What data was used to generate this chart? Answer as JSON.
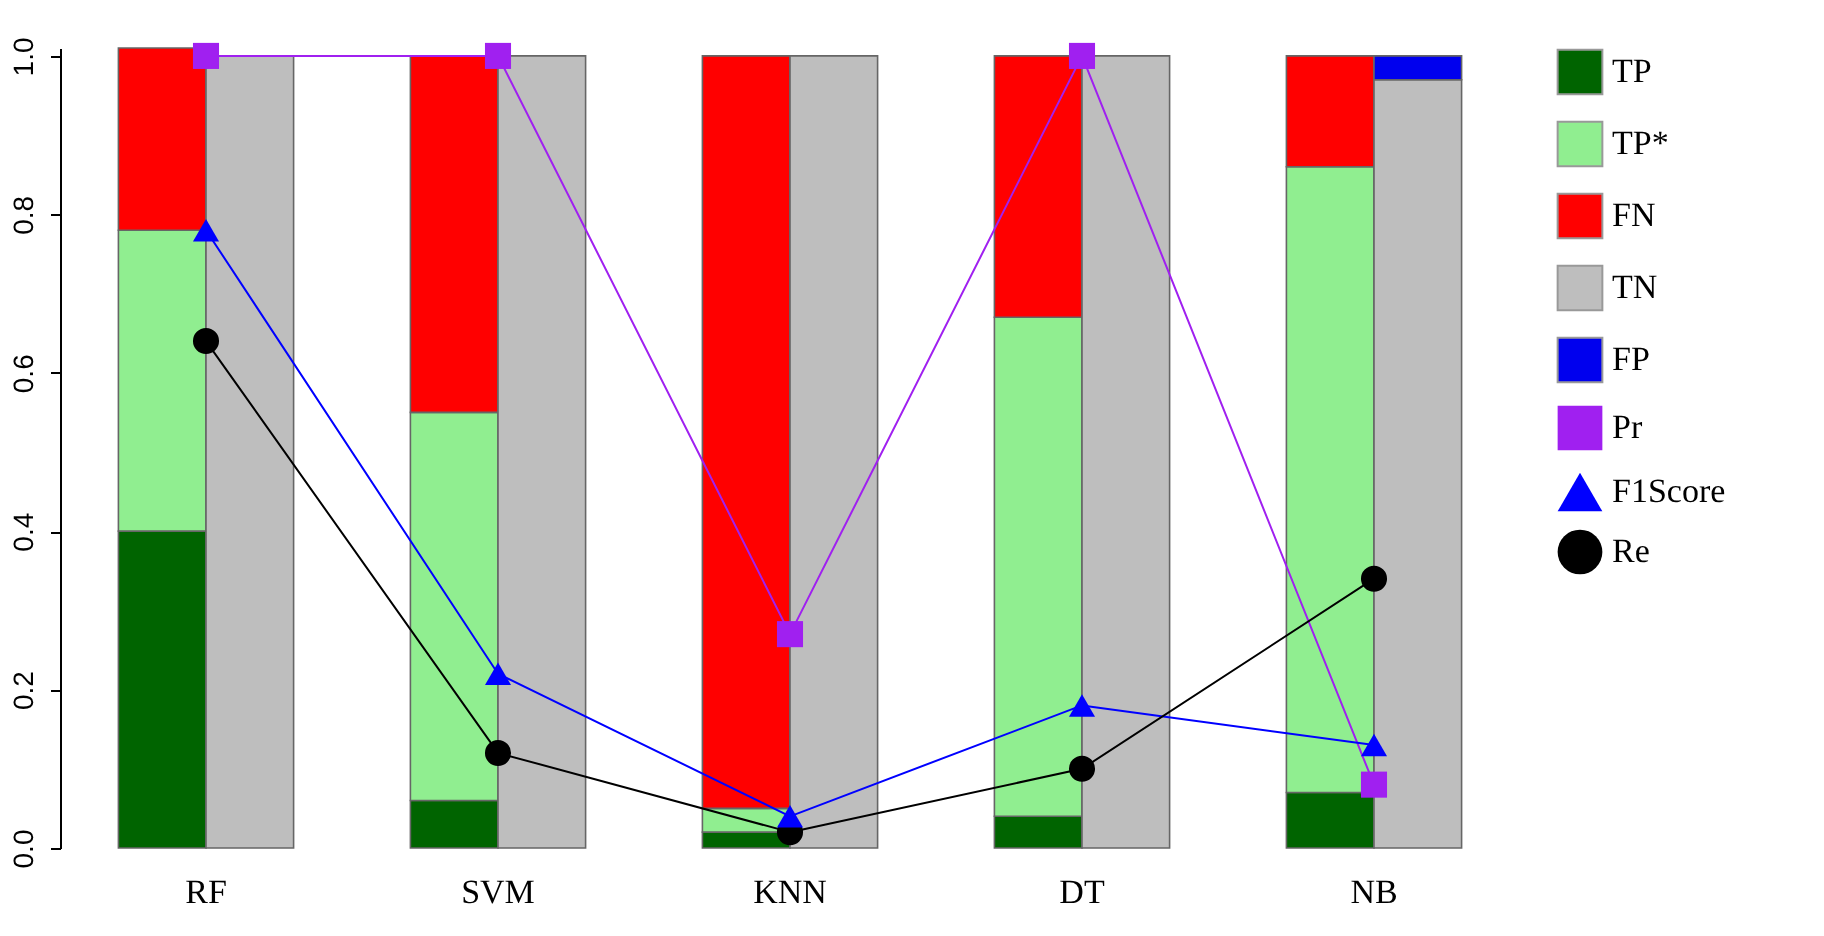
{
  "chart_data": {
    "type": "bar",
    "categories": [
      "RF",
      "SVM",
      "KNN",
      "DT",
      "NB"
    ],
    "series": [
      {
        "name": "TP",
        "color": "#006400",
        "base": [
          0,
          0,
          0,
          0,
          0
        ],
        "values": [
          0.4,
          0.06,
          0.02,
          0.04,
          0.07
        ]
      },
      {
        "name": "TP*",
        "color": "#90ee90",
        "base": [
          0.4,
          0.06,
          0.02,
          0.04,
          0.07
        ],
        "values": [
          0.38,
          0.49,
          0.03,
          0.63,
          0.79
        ]
      },
      {
        "name": "FN",
        "color": "#ff0000",
        "base": [
          0.78,
          0.55,
          0.05,
          0.67,
          0.86
        ],
        "values": [
          0.23,
          0.45,
          0.95,
          0.33,
          0.14
        ]
      },
      {
        "name": "TN",
        "color": "#bebebe",
        "base": [
          0,
          0,
          0,
          0,
          0
        ],
        "values": [
          1.0,
          1.0,
          1.0,
          1.0,
          0.97
        ]
      },
      {
        "name": "FP",
        "color": "#0000ee",
        "base": [
          null,
          null,
          null,
          null,
          0.97
        ],
        "values": [
          null,
          null,
          null,
          null,
          0.03
        ]
      },
      {
        "name": "Pr",
        "type": "line",
        "color": "#a020f0",
        "marker": "square",
        "values": [
          1.0,
          1.0,
          0.27,
          1.0,
          0.08
        ]
      },
      {
        "name": "F1Score",
        "type": "line",
        "color": "#0000ff",
        "marker": "triangle",
        "values": [
          0.78,
          0.22,
          0.04,
          0.18,
          0.13
        ]
      },
      {
        "name": "Re",
        "type": "line",
        "color": "#000000",
        "marker": "circle",
        "values": [
          0.64,
          0.12,
          0.02,
          0.1,
          0.34
        ]
      }
    ],
    "ylim": [
      0,
      1.01
    ],
    "yticks": [
      {
        "value": 0,
        "label": "0.0"
      },
      {
        "value": 0.2,
        "label": "0.2"
      },
      {
        "value": 0.4,
        "label": "0.4"
      },
      {
        "value": 0.6,
        "label": "0.6"
      },
      {
        "value": 0.8,
        "label": "0.8"
      },
      {
        "value": 1.0,
        "label": "1.0"
      }
    ],
    "grid": false,
    "legend": "right"
  }
}
